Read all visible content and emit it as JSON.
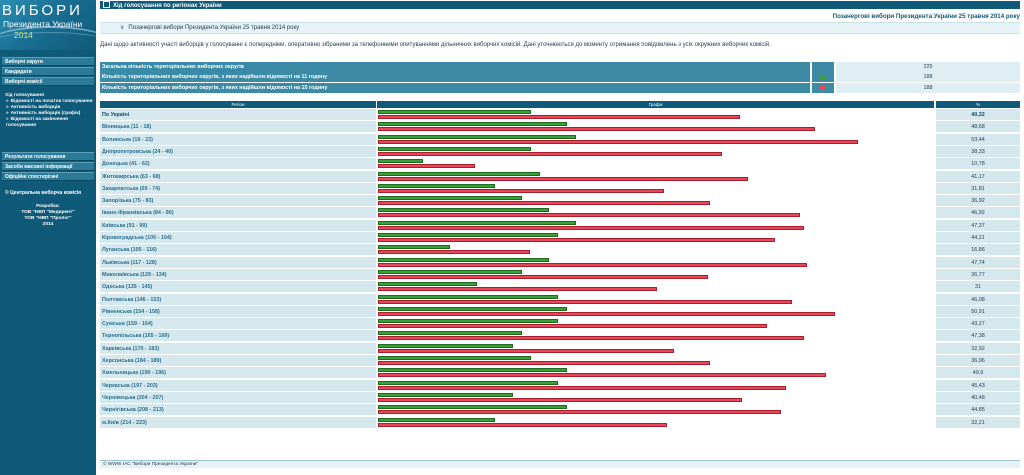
{
  "logo": {
    "line1": "ВИБОРИ",
    "line2": "Президента України",
    "line3": "2014"
  },
  "sidebar": {
    "items": [
      "Виборчі округи",
      "Кандидати",
      "Виборчі комісії",
      "Хід голосування"
    ],
    "sub_items": [
      "Відомості на початок голосування",
      "Активність виборців",
      "Активність виборців (графік)",
      "Відомості на закінчення голосування"
    ],
    "items2": [
      "Результати голосування",
      "Засоби масової інформації",
      "Офіційні спостерігачі"
    ],
    "cvk": "Центральна виборча комісія",
    "dev_label": "Розробка:",
    "dev1": "ТОВ \"НВП \"Медирент\"",
    "dev2": "ТОВ \"НВП \"Пролог\"",
    "dev_year": "2014"
  },
  "header": {
    "title": "Хід голосування по регіонах України",
    "election": "Позачергові вибори Президента України 25 травня 2014 року",
    "selector": "Позачергові вибори Президента України 25 травня 2014 року",
    "notice": "Дані щодо активності участі виборців у голосуванні є попередніми, оперативно зібраними за телефонними опитуваннями дільничних виборчих комісій. Дані уточнюються до моменту отримання повідомлень з усіх окружних виборчих комісій."
  },
  "stats": [
    {
      "label": "Загальна кількість територіальних виборчих округів",
      "value": "225",
      "marker": ""
    },
    {
      "label": "Кількість територіальних виборчих округів, з яких надійшли відомості на 11 годину",
      "value": "188",
      "marker": "#3aa03a"
    },
    {
      "label": "Кількість територіальних виборчих округів, з яких надійшли відомості на 15 годину",
      "value": "188",
      "marker": "#e8475a"
    }
  ],
  "table": {
    "headers": {
      "region": "Регіон",
      "chart": "Графік",
      "percent": "%"
    },
    "rows": [
      {
        "region": "По Україні",
        "pct": "40,32",
        "h11": 17,
        "h15": 40.32
      },
      {
        "region": "Вінницька (11 - 18)",
        "pct": "48,68",
        "h11": 21,
        "h15": 48.68
      },
      {
        "region": "Волинська (19 - 23)",
        "pct": "53,44",
        "h11": 22,
        "h15": 53.44
      },
      {
        "region": "Дніпропетровська (24 - 40)",
        "pct": "38,33",
        "h11": 17,
        "h15": 38.33
      },
      {
        "region": "Донецька (41 - 62)",
        "pct": "10,78",
        "h11": 5,
        "h15": 10.78
      },
      {
        "region": "Житомирська (63 - 68)",
        "pct": "41,17",
        "h11": 18,
        "h15": 41.17
      },
      {
        "region": "Закарпатська (69 - 74)",
        "pct": "31,81",
        "h11": 13,
        "h15": 31.81
      },
      {
        "region": "Запорізька (75 - 83)",
        "pct": "36,92",
        "h11": 16,
        "h15": 36.92
      },
      {
        "region": "Івано-Франківська (84 - 90)",
        "pct": "46,92",
        "h11": 19,
        "h15": 46.92
      },
      {
        "region": "Київська (91 - 99)",
        "pct": "47,37",
        "h11": 22,
        "h15": 47.37
      },
      {
        "region": "Кіровоградська (100 - 104)",
        "pct": "44,21",
        "h11": 20,
        "h15": 44.21
      },
      {
        "region": "Луганська (105 - 116)",
        "pct": "16,86",
        "h11": 8,
        "h15": 16.86
      },
      {
        "region": "Львівська (117 - 128)",
        "pct": "47,74",
        "h11": 19,
        "h15": 47.74
      },
      {
        "region": "Миколаївська (129 - 134)",
        "pct": "36,77",
        "h11": 16,
        "h15": 36.77
      },
      {
        "region": "Одеська (135 - 145)",
        "pct": "31",
        "h11": 11,
        "h15": 31
      },
      {
        "region": "Полтавська (146 - 153)",
        "pct": "46,08",
        "h11": 20,
        "h15": 46.08
      },
      {
        "region": "Рівненська (154 - 158)",
        "pct": "50,91",
        "h11": 21,
        "h15": 50.91
      },
      {
        "region": "Сумська (159 - 164)",
        "pct": "43,27",
        "h11": 20,
        "h15": 43.27
      },
      {
        "region": "Тернопільська (165 - 169)",
        "pct": "47,38",
        "h11": 16,
        "h15": 47.38
      },
      {
        "region": "Харківська (170 - 183)",
        "pct": "32,92",
        "h11": 15,
        "h15": 32.92
      },
      {
        "region": "Херсонська (184 - 189)",
        "pct": "36,96",
        "h11": 17,
        "h15": 36.96
      },
      {
        "region": "Хмельницька (190 - 196)",
        "pct": "49,9",
        "h11": 21,
        "h15": 49.9
      },
      {
        "region": "Черкаська (197 - 203)",
        "pct": "45,43",
        "h11": 20,
        "h15": 45.43
      },
      {
        "region": "Чернівецька (204 - 207)",
        "pct": "40,48",
        "h11": 15,
        "h15": 40.48
      },
      {
        "region": "Чернігівська (208 - 213)",
        "pct": "44,85",
        "h11": 21,
        "h15": 44.85
      },
      {
        "region": "м.Київ (214 - 223)",
        "pct": "32,21",
        "h11": 13,
        "h15": 32.21
      }
    ]
  },
  "footer": "© WWW ІАС \"Вибори Президента України\"",
  "colors": {
    "bar_11h": "#3aa03a",
    "bar_15h": "#e8475a",
    "accent": "#0f5a78"
  }
}
